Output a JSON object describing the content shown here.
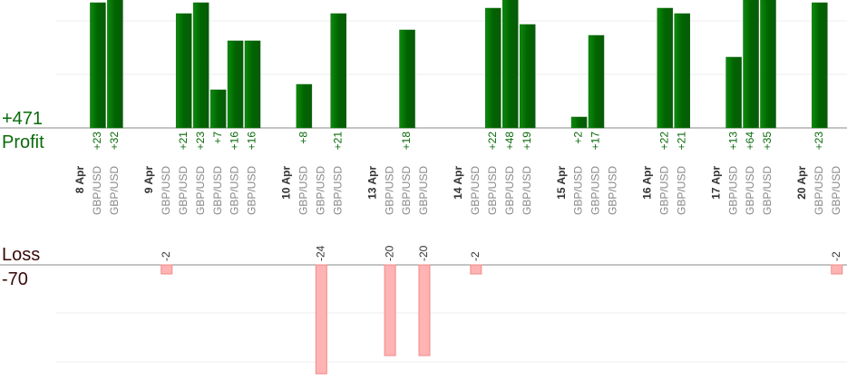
{
  "chart_data": {
    "type": "profit-loss",
    "profit_total": "+471",
    "profit_label": "Profit",
    "loss_label": "Loss",
    "loss_total": "-70",
    "profit_color": "#0a6a0a",
    "loss_color": "#ffb3b3",
    "days": [
      {
        "date": "8 Apr",
        "trades": [
          {
            "pair": "GBP/USD",
            "value": 23,
            "label": "+23"
          },
          {
            "pair": "GBP/USD",
            "value": 32,
            "label": "+32"
          }
        ]
      },
      {
        "date": "9 Apr",
        "trades": [
          {
            "pair": "GBP/USD",
            "value": -2
          },
          {
            "pair": "GBP/USD",
            "value": 21,
            "label": "+21"
          },
          {
            "pair": "GBP/USD",
            "value": 23,
            "label": "+23"
          },
          {
            "pair": "GBP/USD",
            "value": 7,
            "label": "+7"
          },
          {
            "pair": "GBP/USD",
            "value": 16,
            "label": "+16"
          },
          {
            "pair": "GBP/USD",
            "value": 16,
            "label": "+16"
          }
        ]
      },
      {
        "date": "10 Apr",
        "trades": [
          {
            "pair": "GBP/USD",
            "value": 8,
            "label": "+8"
          },
          {
            "pair": "GBP/USD",
            "value": -24
          },
          {
            "pair": "GBP/USD",
            "value": 21,
            "label": "+21"
          }
        ]
      },
      {
        "date": "13 Apr",
        "trades": [
          {
            "pair": "GBP/USD",
            "value": -20
          },
          {
            "pair": "GBP/USD",
            "value": 18,
            "label": "+18"
          },
          {
            "pair": "GBP/USD",
            "value": -20
          }
        ]
      },
      {
        "date": "14 Apr",
        "trades": [
          {
            "pair": "GBP/USD",
            "value": -2
          },
          {
            "pair": "GBP/USD",
            "value": 22,
            "label": "+22"
          },
          {
            "pair": "GBP/USD",
            "value": 48,
            "label": "+48"
          },
          {
            "pair": "GBP/USD",
            "value": 19,
            "label": "+19"
          }
        ]
      },
      {
        "date": "15 Apr",
        "trades": [
          {
            "pair": "GBP/USD",
            "value": 2,
            "label": "+2"
          },
          {
            "pair": "GBP/USD",
            "value": 17,
            "label": "+17"
          },
          {
            "pair": "GBP/USD",
            "value": null
          }
        ]
      },
      {
        "date": "16 Apr",
        "trades": [
          {
            "pair": "GBP/USD",
            "value": 22,
            "label": "+22"
          },
          {
            "pair": "GBP/USD",
            "value": 21,
            "label": "+21"
          }
        ]
      },
      {
        "date": "17 Apr",
        "trades": [
          {
            "pair": "GBP/USD",
            "value": 13,
            "label": "+13"
          },
          {
            "pair": "GBP/USD",
            "value": 64,
            "label": "+64"
          },
          {
            "pair": "GBP/USD",
            "value": 35,
            "label": "+35"
          }
        ]
      },
      {
        "date": "20 Apr",
        "trades": [
          {
            "pair": "GBP/USD",
            "value": 23,
            "label": "+23"
          },
          {
            "pair": "GBP/USD",
            "value": -2
          }
        ]
      }
    ]
  }
}
